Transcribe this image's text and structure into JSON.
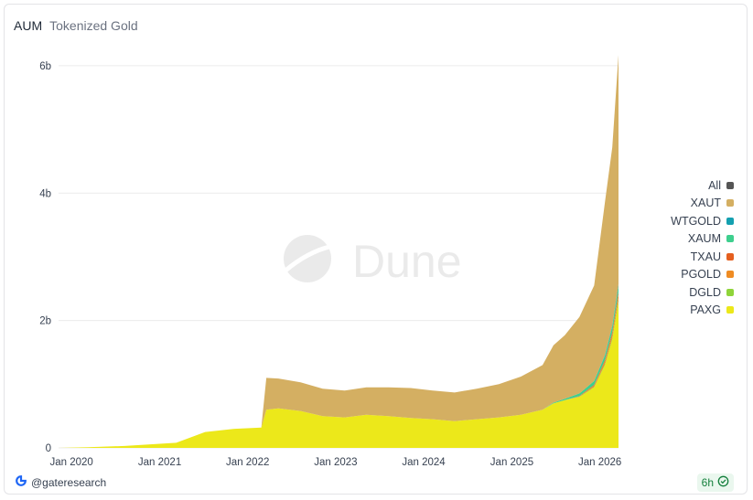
{
  "header": {
    "title": "AUM",
    "subtitle": "Tokenized Gold"
  },
  "watermark": {
    "text": "Dune"
  },
  "footer": {
    "author": "@gateresearch",
    "refresh": "6h"
  },
  "colors": {
    "XAUT": "#d4af62",
    "WTGOLD": "#14a0b0",
    "XAUM": "#3ecf8e",
    "TXAU": "#e55f1f",
    "PGOLD": "#ef8c23",
    "DGLD": "#8fd43a",
    "PAXG": "#ece81a",
    "All": "#555555",
    "grid": "#ececec"
  },
  "chart_data": {
    "type": "area",
    "stacked": true,
    "title": "AUM",
    "subtitle": "Tokenized Gold",
    "y_ticks": [
      "0",
      "2b",
      "4b",
      "6b"
    ],
    "ylim": [
      0,
      6200000000
    ],
    "x_ticks": [
      "Jan 2020",
      "Jan 2021",
      "Jan 2022",
      "Jan 2023",
      "Jan 2024",
      "Jan 2025",
      "Jan 2026"
    ],
    "x": [
      "2019-09-01",
      "2020-01-01",
      "2020-06-01",
      "2021-01-01",
      "2021-05-01",
      "2021-09-01",
      "2021-12-20",
      "2022-01-10",
      "2022-03-01",
      "2022-06-01",
      "2022-09-01",
      "2022-12-01",
      "2023-03-01",
      "2023-06-01",
      "2023-09-01",
      "2023-12-01",
      "2024-03-01",
      "2024-06-01",
      "2024-09-01",
      "2024-12-01",
      "2025-03-01",
      "2025-04-15",
      "2025-06-01",
      "2025-08-01",
      "2025-10-01",
      "2025-11-15",
      "2025-12-15",
      "2026-01-10"
    ],
    "legend": [
      "All",
      "XAUT",
      "WTGOLD",
      "XAUM",
      "TXAU",
      "PGOLD",
      "DGLD",
      "PAXG"
    ],
    "legend_position": "right",
    "series": [
      {
        "name": "PAXG",
        "values": [
          0,
          10000000,
          30000000,
          80000000,
          250000000,
          300000000,
          320000000,
          600000000,
          620000000,
          580000000,
          500000000,
          480000000,
          520000000,
          500000000,
          470000000,
          450000000,
          420000000,
          450000000,
          480000000,
          520000000,
          600000000,
          700000000,
          750000000,
          800000000,
          950000000,
          1300000000,
          1700000000,
          2300000000
        ]
      },
      {
        "name": "DGLD",
        "values": [
          0,
          0,
          0,
          0,
          0,
          0,
          0,
          0,
          0,
          0,
          0,
          0,
          0,
          0,
          0,
          0,
          0,
          0,
          0,
          0,
          0,
          0,
          0,
          5000000,
          10000000,
          20000000,
          30000000,
          40000000
        ]
      },
      {
        "name": "PGOLD",
        "values": [
          0,
          0,
          0,
          0,
          0,
          0,
          0,
          0,
          0,
          0,
          0,
          0,
          0,
          0,
          0,
          0,
          0,
          0,
          0,
          0,
          0,
          0,
          0,
          5000000,
          20000000,
          40000000,
          60000000,
          70000000
        ]
      },
      {
        "name": "TXAU",
        "values": [
          0,
          0,
          0,
          0,
          0,
          0,
          0,
          0,
          0,
          0,
          0,
          0,
          0,
          0,
          0,
          0,
          0,
          0,
          0,
          0,
          0,
          0,
          0,
          5000000,
          10000000,
          20000000,
          30000000,
          40000000
        ]
      },
      {
        "name": "XAUM",
        "values": [
          0,
          0,
          0,
          0,
          0,
          0,
          0,
          0,
          0,
          0,
          0,
          0,
          0,
          0,
          0,
          0,
          0,
          0,
          0,
          0,
          0,
          10000000,
          20000000,
          40000000,
          60000000,
          70000000,
          80000000,
          90000000
        ]
      },
      {
        "name": "WTGOLD",
        "values": [
          0,
          0,
          0,
          0,
          0,
          0,
          0,
          0,
          0,
          0,
          0,
          0,
          0,
          0,
          0,
          0,
          0,
          0,
          0,
          0,
          0,
          0,
          0,
          0,
          0,
          10000000,
          20000000,
          30000000
        ]
      },
      {
        "name": "XAUT",
        "values": [
          0,
          0,
          0,
          0,
          0,
          0,
          0,
          500000000,
          470000000,
          450000000,
          430000000,
          420000000,
          430000000,
          450000000,
          470000000,
          450000000,
          450000000,
          480000000,
          520000000,
          600000000,
          700000000,
          900000000,
          1000000000,
          1200000000,
          1500000000,
          2400000000,
          2800000000,
          3600000000
        ]
      }
    ]
  }
}
